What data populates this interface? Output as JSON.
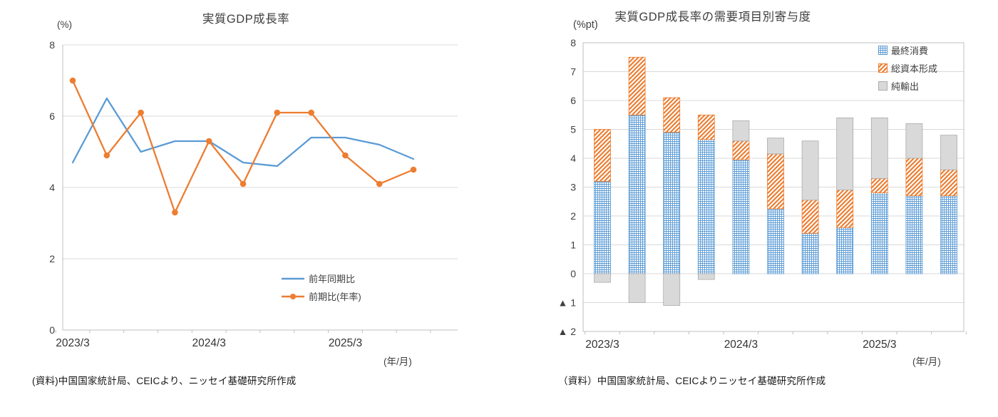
{
  "page": {
    "background": "#ffffff"
  },
  "colors": {
    "yoy_line": "#5B9BD5",
    "qoq_line": "#ED7D31",
    "consumption": "#5B9BD5",
    "capital_formation": "#ED7D31",
    "net_exports": "#D9D9D9",
    "grid": "#D9D9D9",
    "axis": "#BFBFBF"
  },
  "left_chart": {
    "source": "(資料)中国国家統計局、CEICより、ニッセイ基礎研究所作成"
  },
  "right_chart": {
    "source": "（資料）中国国家統計局、CEICよりニッセイ基礎研究所作成"
  },
  "chart_data": [
    {
      "type": "line",
      "title": "実質GDP成長率",
      "ylabel": "(%)",
      "xlabel": "(年/月)",
      "ylim": [
        0,
        8
      ],
      "yticks": [
        0,
        2,
        4,
        6,
        8
      ],
      "grid": true,
      "legend_position": "inside-bottom-right",
      "categories": [
        "2023/3",
        "2023/6",
        "2023/9",
        "2023/12",
        "2024/3",
        "2024/6",
        "2024/9",
        "2024/12",
        "2025/3",
        "2025/6",
        "2025/9"
      ],
      "x_axis_labels": [
        {
          "label": "2023/3",
          "index": 0
        },
        {
          "label": "2024/3",
          "index": 4
        },
        {
          "label": "2025/3",
          "index": 8
        }
      ],
      "series": [
        {
          "name": "前年同期比",
          "color": "#5B9BD5",
          "marker": false,
          "values": [
            4.7,
            6.5,
            5.0,
            5.3,
            5.3,
            4.7,
            4.6,
            5.4,
            5.4,
            5.2,
            4.8
          ]
        },
        {
          "name": "前期比(年率)",
          "color": "#ED7D31",
          "marker": true,
          "values": [
            7.0,
            4.9,
            6.1,
            3.3,
            5.3,
            4.1,
            6.1,
            6.1,
            4.9,
            4.1,
            4.5
          ]
        }
      ]
    },
    {
      "type": "bar",
      "stacked": true,
      "title": "実質GDP成長率の需要項目別寄与度",
      "ylabel": "(%pt)",
      "xlabel": "(年/月)",
      "ylim": [
        -2,
        8
      ],
      "yticks": [
        8,
        7,
        6,
        5,
        4,
        3,
        2,
        1,
        0,
        -1,
        -2
      ],
      "negative_tick_prefix": "▲",
      "grid": true,
      "legend_position": "inside-top-right",
      "categories": [
        "2023/3",
        "2023/6",
        "2023/9",
        "2023/12",
        "2024/3",
        "2024/6",
        "2024/9",
        "2024/12",
        "2025/3",
        "2025/6",
        "2025/9"
      ],
      "x_axis_labels": [
        {
          "label": "2023/3",
          "index": 0
        },
        {
          "label": "2024/3",
          "index": 4
        },
        {
          "label": "2025/3",
          "index": 8
        }
      ],
      "series": [
        {
          "name": "最終消費",
          "pattern": "crosshatch",
          "color": "#5B9BD5",
          "values": [
            3.2,
            5.5,
            4.9,
            4.65,
            3.95,
            2.25,
            1.4,
            1.6,
            2.8,
            2.7,
            2.7
          ]
        },
        {
          "name": "総資本形成",
          "pattern": "diagonal",
          "color": "#ED7D31",
          "values": [
            1.8,
            2.0,
            1.2,
            0.85,
            0.65,
            1.9,
            1.15,
            1.3,
            0.5,
            1.3,
            0.9
          ]
        },
        {
          "name": "純輸出",
          "pattern": "solid",
          "color": "#D9D9D9",
          "values": [
            -0.3,
            -1.0,
            -1.1,
            -0.2,
            0.7,
            0.55,
            2.05,
            2.5,
            2.1,
            1.2,
            1.2
          ]
        }
      ]
    }
  ]
}
